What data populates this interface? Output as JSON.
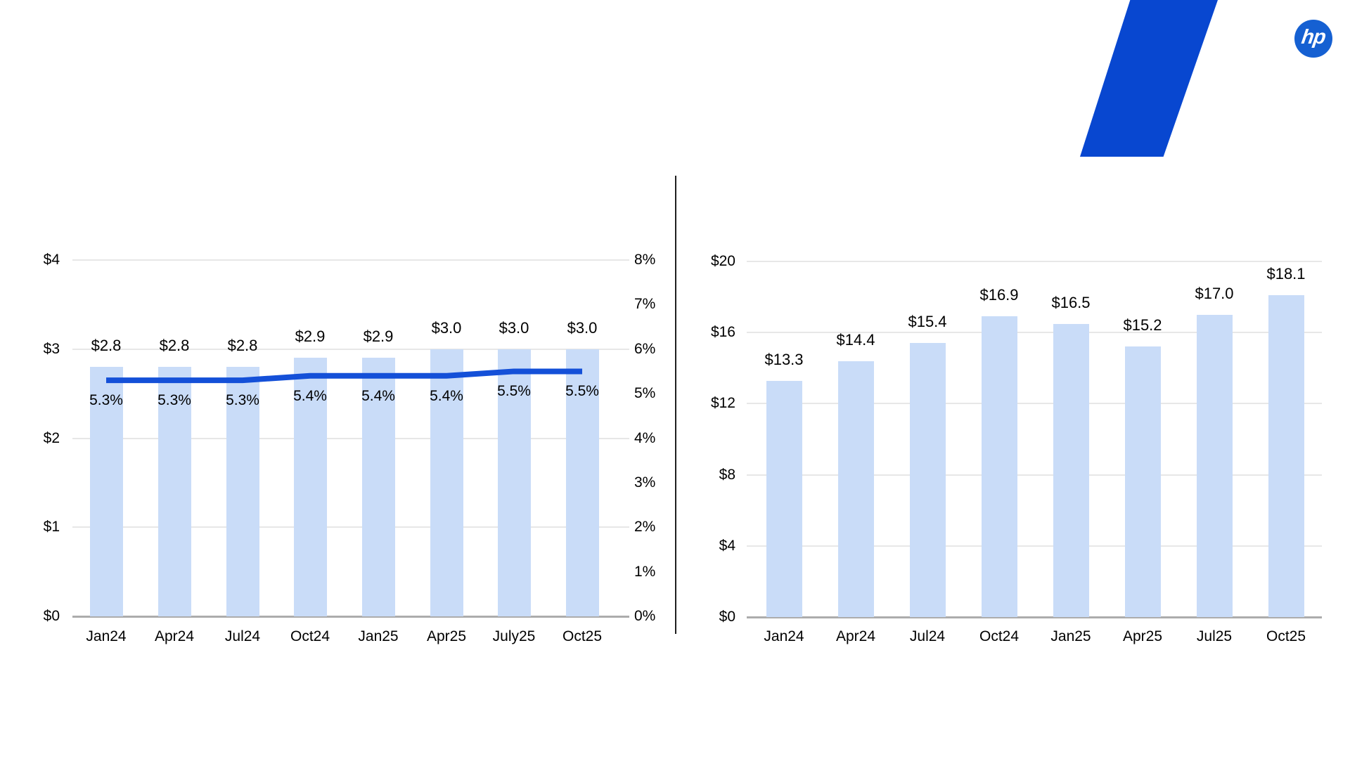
{
  "branding": {
    "logo": {
      "text": "hp",
      "circle_color": "#1560D2",
      "text_color": "#ffffff"
    },
    "accent_shape_color": "#0847D0"
  },
  "colors": {
    "bar_fill": "#C9DCF8",
    "line_stroke": "#1450D8",
    "gridline": "#E7E7E7",
    "axis_baseline": "#ACACAC",
    "divider": "#1F1F1F",
    "label_text": "#000000"
  },
  "chart_data": [
    {
      "type": "combo-bar-line",
      "title": "",
      "categories": [
        "Jan24",
        "Apr24",
        "Jul24",
        "Oct24",
        "Jan25",
        "Apr25",
        "July25",
        "Oct25"
      ],
      "series": [
        {
          "name": "dollar-bars",
          "type": "bar",
          "axis": "left",
          "values": [
            2.8,
            2.8,
            2.8,
            2.9,
            2.9,
            3.0,
            3.0,
            3.0
          ],
          "labels": [
            "$2.8",
            "$2.8",
            "$2.8",
            "$2.9",
            "$2.9",
            "$3.0",
            "$3.0",
            "$3.0"
          ]
        },
        {
          "name": "percent-line",
          "type": "line",
          "axis": "right",
          "values": [
            5.3,
            5.3,
            5.3,
            5.4,
            5.4,
            5.4,
            5.5,
            5.5
          ],
          "labels": [
            "5.3%",
            "5.3%",
            "5.3%",
            "5.4%",
            "5.4%",
            "5.4%",
            "5.5%",
            "5.5%"
          ]
        }
      ],
      "left_axis": {
        "ticks": [
          "$4",
          "$3",
          "$2",
          "$1",
          "$0"
        ],
        "tick_values": [
          4,
          3,
          2,
          1,
          0
        ],
        "min": 0,
        "max": 4
      },
      "right_axis": {
        "ticks": [
          "8%",
          "7%",
          "6%",
          "5%",
          "4%",
          "3%",
          "2%",
          "1%",
          "0%"
        ],
        "tick_values": [
          8,
          7,
          6,
          5,
          4,
          3,
          2,
          1,
          0
        ],
        "min": 0,
        "max": 8
      },
      "grid": true,
      "legend": "none"
    },
    {
      "type": "bar",
      "title": "",
      "categories": [
        "Jan24",
        "Apr24",
        "Jul24",
        "Oct24",
        "Jan25",
        "Apr25",
        "Jul25",
        "Oct25"
      ],
      "values": [
        13.3,
        14.4,
        15.4,
        16.9,
        16.5,
        15.2,
        17.0,
        18.1
      ],
      "labels": [
        "$13.3",
        "$14.4",
        "$15.4",
        "$16.9",
        "$16.5",
        "$15.2",
        "$17.0",
        "$18.1"
      ],
      "y_axis": {
        "ticks": [
          "$20",
          "$16",
          "$12",
          "$8",
          "$4",
          "$0"
        ],
        "tick_values": [
          20,
          16,
          12,
          8,
          4,
          0
        ],
        "min": 0,
        "max": 20
      },
      "grid": true,
      "legend": "none"
    }
  ]
}
